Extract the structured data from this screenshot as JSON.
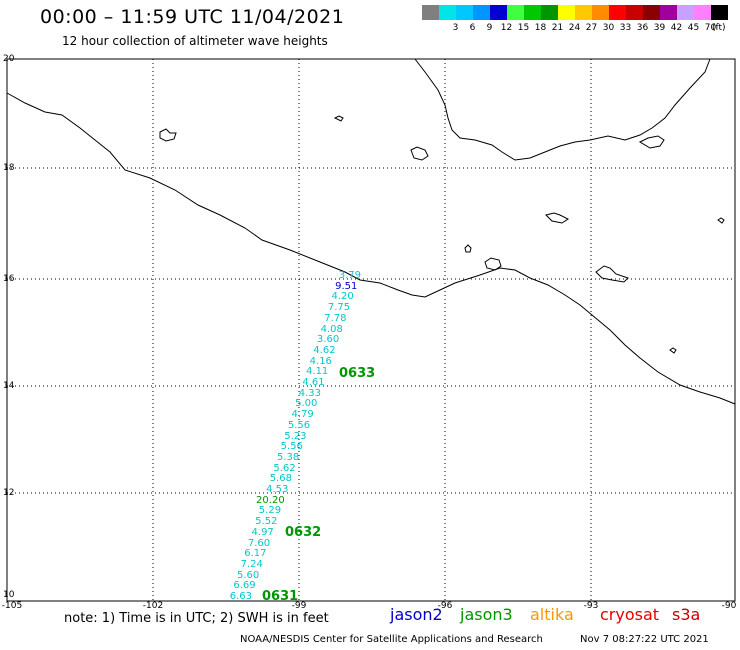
{
  "title": "00:00 – 11:59 UTC 11/04/2021",
  "subtitle": "12 hour collection of altimeter wave heights",
  "legend": {
    "unit": "(ft)",
    "bins": [
      {
        "label": "",
        "color": "#7f7f7f"
      },
      {
        "label": "3",
        "color": "#00e5e5"
      },
      {
        "label": "6",
        "color": "#00c8ff"
      },
      {
        "label": "9",
        "color": "#0096ff"
      },
      {
        "label": "12",
        "color": "#0000d2"
      },
      {
        "label": "15",
        "color": "#40ff40"
      },
      {
        "label": "18",
        "color": "#00c800"
      },
      {
        "label": "21",
        "color": "#009600"
      },
      {
        "label": "24",
        "color": "#ffff00"
      },
      {
        "label": "27",
        "color": "#ffc800"
      },
      {
        "label": "30",
        "color": "#ff8c00"
      },
      {
        "label": "33",
        "color": "#ff0000"
      },
      {
        "label": "36",
        "color": "#c80000"
      },
      {
        "label": "39",
        "color": "#8b0000"
      },
      {
        "label": "42",
        "color": "#a000a0"
      },
      {
        "label": "45",
        "color": "#c8a0ff"
      },
      {
        "label": "70",
        "color": "#ff80ff"
      },
      {
        "label": "",
        "color": "#000000"
      }
    ]
  },
  "axes": {
    "lat_labels": [
      "20",
      "18",
      "16",
      "14",
      "12",
      "10"
    ],
    "lon_labels": [
      "-105",
      "-102",
      "-99",
      "-96",
      "-93",
      "-90"
    ]
  },
  "measurements": [
    {
      "value": "3.79",
      "color": "#00c8c8"
    },
    {
      "value": "9.51",
      "color": "#0000c8"
    },
    {
      "value": "4.20",
      "color": "#00c8c8"
    },
    {
      "value": "7.75",
      "color": "#00c8c8"
    },
    {
      "value": "7.78",
      "color": "#00c8c8"
    },
    {
      "value": "4.08",
      "color": "#00c8c8"
    },
    {
      "value": "3.60",
      "color": "#00c8c8"
    },
    {
      "value": "4.62",
      "color": "#00c8c8"
    },
    {
      "value": "4.16",
      "color": "#00c8c8"
    },
    {
      "value": "4.11",
      "color": "#00c8c8"
    },
    {
      "value": "4.61",
      "color": "#00c8c8"
    },
    {
      "value": "4.33",
      "color": "#00c8c8"
    },
    {
      "value": "5.00",
      "color": "#00c8c8"
    },
    {
      "value": "4.79",
      "color": "#00c8c8"
    },
    {
      "value": "5.56",
      "color": "#00c8c8"
    },
    {
      "value": "5.23",
      "color": "#00c8c8"
    },
    {
      "value": "5.56",
      "color": "#00c8c8"
    },
    {
      "value": "5.38",
      "color": "#00c8c8"
    },
    {
      "value": "5.62",
      "color": "#00c8c8"
    },
    {
      "value": "5.68",
      "color": "#00c8c8"
    },
    {
      "value": "4.53",
      "color": "#00c8c8"
    },
    {
      "value": "20.20",
      "color": "#009600"
    },
    {
      "value": "5.29",
      "color": "#00c8c8"
    },
    {
      "value": "5.52",
      "color": "#00c8c8"
    },
    {
      "value": "4.97",
      "color": "#00c8c8"
    },
    {
      "value": "7.60",
      "color": "#00c8c8"
    },
    {
      "value": "6.17",
      "color": "#00c8c8"
    },
    {
      "value": "7.24",
      "color": "#00c8c8"
    },
    {
      "value": "5.60",
      "color": "#00c8c8"
    },
    {
      "value": "6.69",
      "color": "#00c8c8"
    },
    {
      "value": "6.63",
      "color": "#00c8c8"
    }
  ],
  "pass_times": [
    "0633",
    "0632",
    "0631"
  ],
  "pass_color": "#009600",
  "note": "note: 1) Time is in UTC; 2) SWH is in feet",
  "satellites": [
    {
      "name": "jason2",
      "color": "#0000c8"
    },
    {
      "name": "jason3",
      "color": "#009600"
    },
    {
      "name": "altika",
      "color": "#ff9600"
    },
    {
      "name": "cryosat",
      "color": "#e60000"
    },
    {
      "name": "s3a",
      "color": "#c80000"
    }
  ],
  "credit": "NOAA/NESDIS Center for Satellite Applications and Research",
  "timestamp": "Nov  7 08:27:22 UTC 2021"
}
